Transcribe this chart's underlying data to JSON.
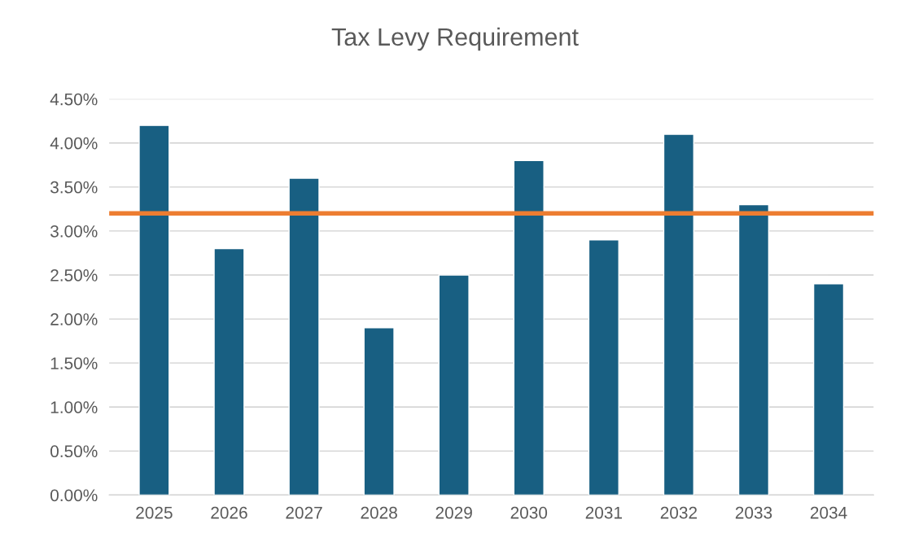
{
  "chart_data": {
    "type": "bar",
    "title": "Tax Levy Requirement",
    "categories": [
      "2025",
      "2026",
      "2027",
      "2028",
      "2029",
      "2030",
      "2031",
      "2032",
      "2033",
      "2034"
    ],
    "values": [
      4.2,
      2.8,
      3.6,
      1.9,
      2.5,
      3.8,
      2.9,
      4.1,
      3.3,
      2.4
    ],
    "color": "#185f82",
    "ylim": [
      0,
      4.5
    ],
    "yticks": [
      {
        "value": 0,
        "label": "0.00%"
      },
      {
        "value": 0.5,
        "label": "0.50%"
      },
      {
        "value": 1,
        "label": "1.00%"
      },
      {
        "value": 1.5,
        "label": "1.50%"
      },
      {
        "value": 2,
        "label": "2.00%"
      },
      {
        "value": 2.5,
        "label": "2.50%"
      },
      {
        "value": 3,
        "label": "3.00%"
      },
      {
        "value": 3.5,
        "label": "3.50%"
      },
      {
        "value": 4,
        "label": "4.00%"
      },
      {
        "value": 4.5,
        "label": "4.50%"
      }
    ],
    "ref_lines": [
      {
        "axis": "y",
        "value": 3.2,
        "color": "#ed7d31",
        "line_style": "solid"
      }
    ],
    "grid": "y"
  }
}
